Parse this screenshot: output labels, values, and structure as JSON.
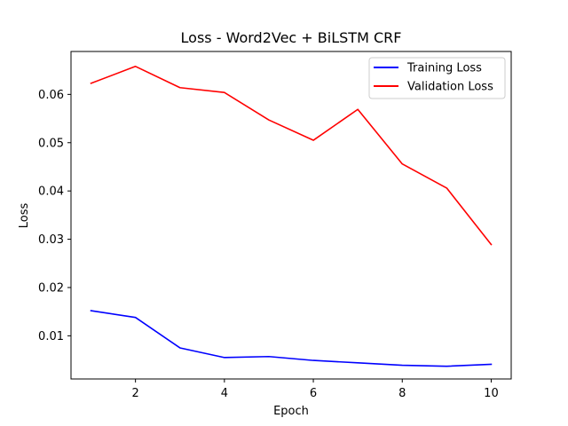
{
  "chart_data": {
    "type": "line",
    "title": "Loss - Word2Vec + BiLSTM CRF",
    "xlabel": "Epoch",
    "ylabel": "Loss",
    "x": [
      1,
      2,
      3,
      4,
      5,
      6,
      7,
      8,
      9,
      10
    ],
    "xlim": [
      0.55,
      10.45
    ],
    "ylim": [
      0.00106,
      0.06889
    ],
    "x_ticks": [
      2,
      4,
      6,
      8,
      10
    ],
    "x_tick_labels": [
      "2",
      "4",
      "6",
      "8",
      "10"
    ],
    "y_ticks": [
      0.01,
      0.02,
      0.03,
      0.04,
      0.05,
      0.06
    ],
    "y_tick_labels": [
      "0.01",
      "0.02",
      "0.03",
      "0.04",
      "0.05",
      "0.06"
    ],
    "grid": false,
    "legend_position": "top-right",
    "series": [
      {
        "name": "Training Loss",
        "color": "#0000ff",
        "values": [
          0.0152,
          0.0138,
          0.0075,
          0.0055,
          0.0057,
          0.0049,
          0.0044,
          0.0039,
          0.0037,
          0.0041
        ]
      },
      {
        "name": "Validation Loss",
        "color": "#ff0000",
        "values": [
          0.0623,
          0.0658,
          0.0614,
          0.0604,
          0.0547,
          0.0505,
          0.0569,
          0.0456,
          0.0406,
          0.0289
        ]
      }
    ]
  }
}
